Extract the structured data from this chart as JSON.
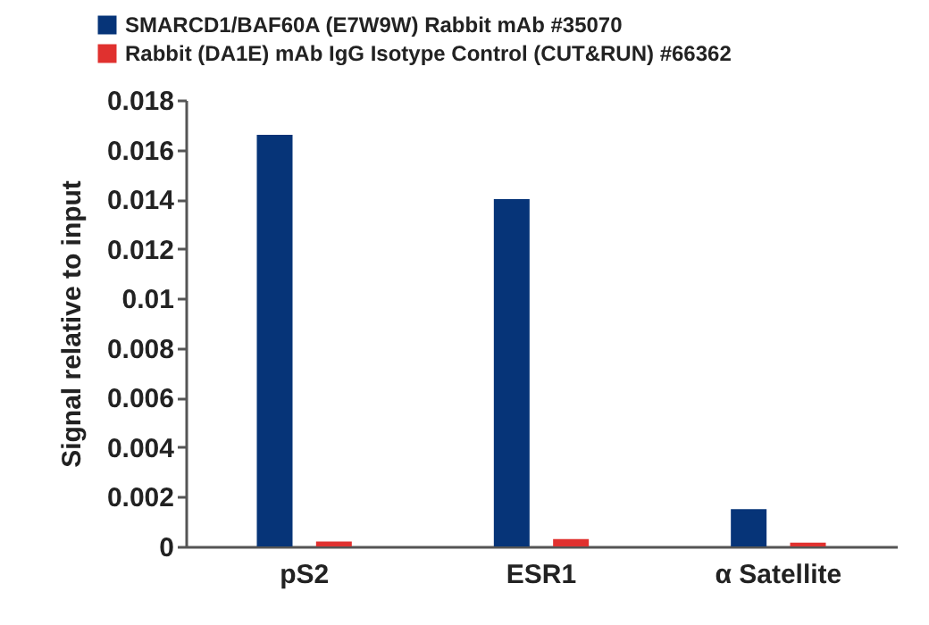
{
  "chart_data": {
    "type": "bar",
    "ylabel": "Signal relative to input",
    "categories": [
      "pS2",
      "ESR1",
      "α Satellite"
    ],
    "series": [
      {
        "name": "SMARCD1/BAF60A (E7W9W) Rabbit mAb #35070",
        "color": "#063478",
        "values": [
          0.0166,
          0.014,
          0.0015
        ]
      },
      {
        "name": "Rabbit (DA1E) mAb IgG Isotype Control (CUT&RUN) #66362",
        "color": "#e0312f",
        "values": [
          0.0002,
          0.0003,
          0.00015
        ]
      }
    ],
    "ylim": [
      0,
      0.018
    ],
    "yticks": [
      0,
      0.002,
      0.004,
      0.006,
      0.008,
      0.01,
      0.012,
      0.014,
      0.016,
      0.018
    ],
    "grid": false,
    "legend": "top left"
  }
}
